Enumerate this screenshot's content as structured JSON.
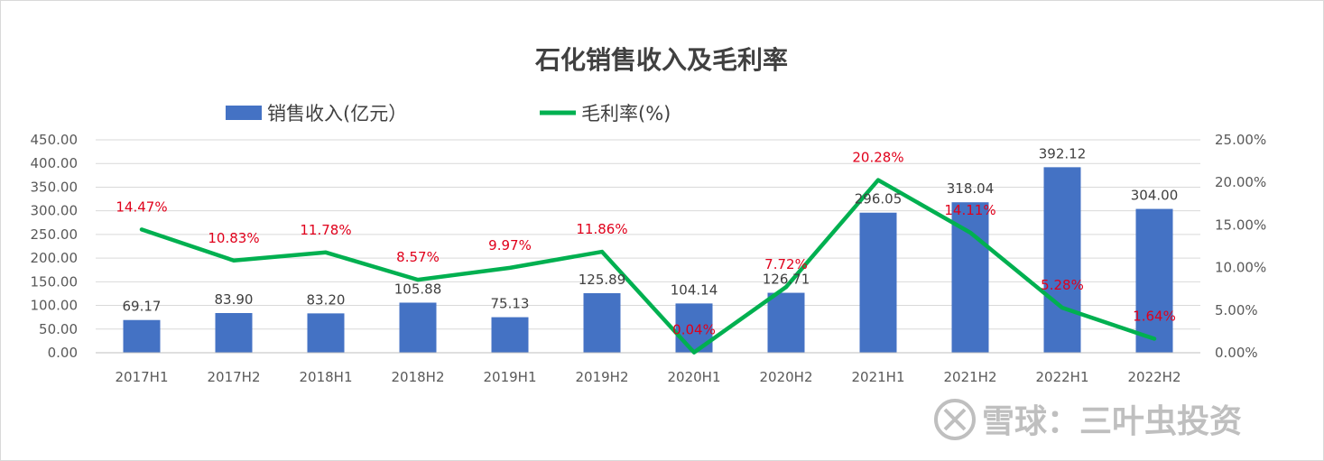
{
  "chart_data": {
    "type": "bar",
    "title": "石化销售收入及毛利率",
    "categories": [
      "2017H1",
      "2017H2",
      "2018H1",
      "2018H2",
      "2019H1",
      "2019H2",
      "2020H1",
      "2020H2",
      "2021H1",
      "2021H2",
      "2022H1",
      "2022H2"
    ],
    "series": [
      {
        "name": "销售收入(亿元）",
        "type": "bar",
        "axis": "left",
        "color": "#4472c4",
        "values": [
          69.17,
          83.9,
          83.2,
          105.88,
          75.13,
          125.89,
          104.14,
          126.71,
          296.05,
          318.04,
          392.12,
          304.0
        ],
        "labels": [
          "69.17",
          "83.90",
          "83.20",
          "105.88",
          "75.13",
          "125.89",
          "104.14",
          "126.71",
          "296.05",
          "318.04",
          "392.12",
          "304.00"
        ]
      },
      {
        "name": "毛利率(%)",
        "type": "line",
        "axis": "right",
        "color": "#00b050",
        "label_color": "#e0001b",
        "values": [
          14.47,
          10.83,
          11.78,
          8.57,
          9.97,
          11.86,
          0.04,
          7.72,
          20.28,
          14.11,
          5.28,
          1.64
        ],
        "labels": [
          "14.47%",
          "10.83%",
          "11.78%",
          "8.57%",
          "9.97%",
          "11.86%",
          "0.04%",
          "7.72%",
          "20.28%",
          "14.11%",
          "5.28%",
          "1.64%"
        ]
      }
    ],
    "ylim_left": [
      0,
      450
    ],
    "yticks_left": [
      "0.00",
      "50.00",
      "100.00",
      "150.00",
      "200.00",
      "250.00",
      "300.00",
      "350.00",
      "400.00",
      "450.00"
    ],
    "ylim_right": [
      0,
      25
    ],
    "yticks_right": [
      "0.00%",
      "5.00%",
      "10.00%",
      "15.00%",
      "20.00%",
      "25.00%"
    ],
    "grid": true,
    "legend_position": "top"
  },
  "watermark": {
    "text": "雪球：三叶虫投资",
    "color": "#bfbfbf"
  }
}
